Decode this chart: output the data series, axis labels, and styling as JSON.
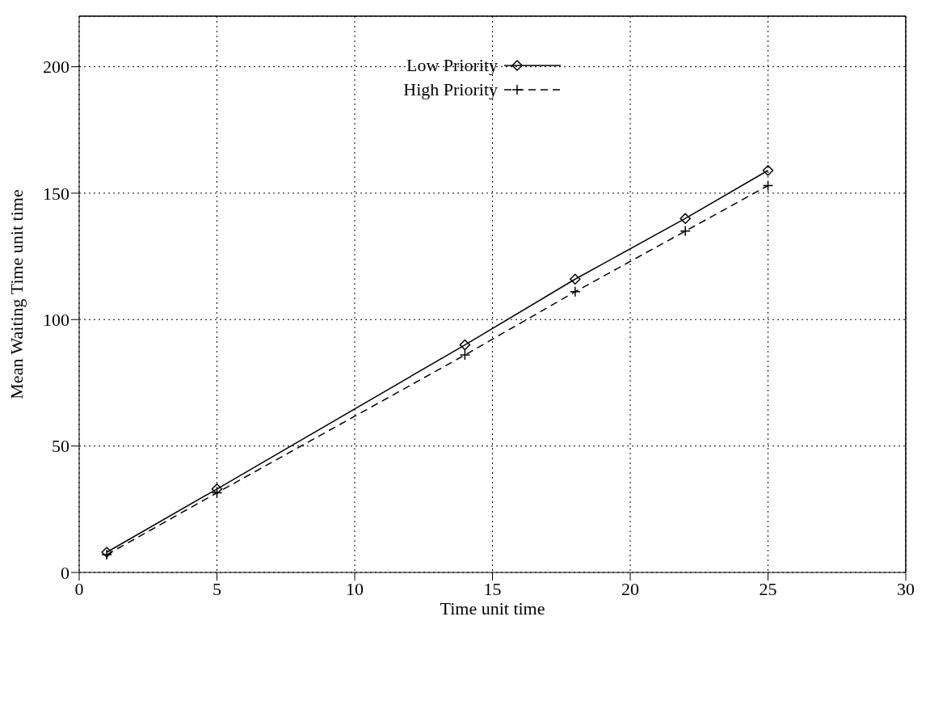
{
  "chart_data": {
    "type": "line",
    "xlabel": "Time unit time",
    "ylabel": "Mean Waiting Time unit time",
    "x": [
      1,
      5,
      14,
      18,
      22,
      25
    ],
    "series": [
      {
        "name": "Low Priority",
        "color": "#000000",
        "values": [
          8,
          33,
          90,
          116,
          140,
          159
        ],
        "marker": "diamond",
        "line_style": "solid"
      },
      {
        "name": "High Priority",
        "color": "#000000",
        "values": [
          7,
          31.5,
          86,
          111,
          135,
          153
        ],
        "marker": "cross",
        "line_style": "dashed"
      }
    ],
    "xlim": [
      0,
      30
    ],
    "xticks": [
      0,
      5,
      10,
      15,
      20,
      25,
      30
    ],
    "ylim": [
      0,
      220
    ],
    "yticks": [
      0,
      50,
      100,
      150,
      200
    ],
    "grid": true,
    "legend": "top"
  }
}
